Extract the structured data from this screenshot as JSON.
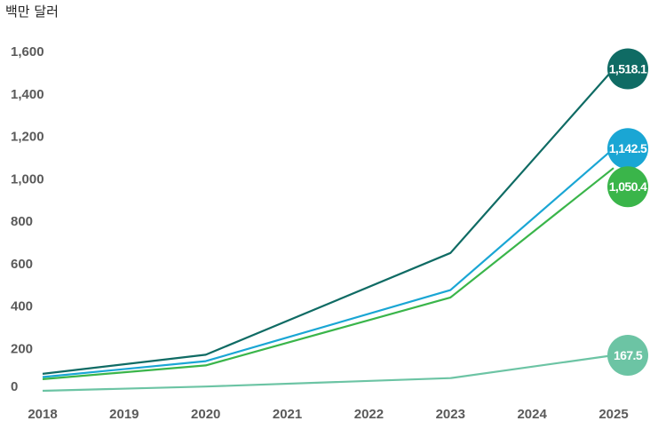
{
  "chart_data": {
    "type": "line",
    "unit_label": "백만 달러",
    "x": [
      "2018",
      "2019",
      "2020",
      "2021",
      "2022",
      "2023",
      "2024",
      "2025"
    ],
    "ylim": [
      0,
      1600
    ],
    "yticks": [
      "0",
      "200",
      "400",
      "600",
      "800",
      "1,000",
      "1,200",
      "1,400",
      "1,600"
    ],
    "grid": false,
    "series": [
      {
        "color": "#0f6b64",
        "points": [
          [
            2018,
            80
          ],
          [
            2020,
            170
          ],
          [
            2023,
            650
          ],
          [
            2025,
            1518.1
          ]
        ],
        "end_label": "1,518.1"
      },
      {
        "color": "#1aa6d4",
        "points": [
          [
            2018,
            65
          ],
          [
            2020,
            140
          ],
          [
            2023,
            475
          ],
          [
            2025,
            1142.5
          ]
        ],
        "end_label": "1,142.5"
      },
      {
        "color": "#3ab54a",
        "points": [
          [
            2018,
            55
          ],
          [
            2020,
            120
          ],
          [
            2023,
            440
          ],
          [
            2025,
            1050.4
          ]
        ],
        "end_label": "1,050.4"
      },
      {
        "color": "#6cc4a4",
        "points": [
          [
            2018,
            0
          ],
          [
            2020,
            20
          ],
          [
            2023,
            60
          ],
          [
            2025,
            167.5
          ]
        ],
        "end_label": "167.5"
      }
    ]
  }
}
